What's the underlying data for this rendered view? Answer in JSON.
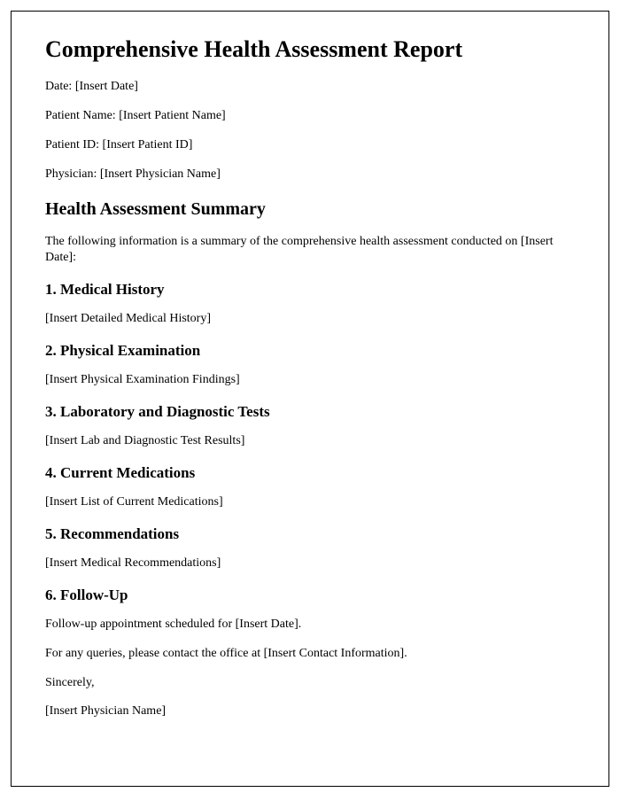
{
  "title": "Comprehensive Health Assessment Report",
  "meta": {
    "date_label": "Date: [Insert Date]",
    "patient_name_label": "Patient Name: [Insert Patient Name]",
    "patient_id_label": "Patient ID: [Insert Patient ID]",
    "physician_label": "Physician: [Insert Physician Name]"
  },
  "summary_heading": "Health Assessment Summary",
  "summary_intro": "The following information is a summary of the comprehensive health assessment conducted on [Insert Date]:",
  "sections": {
    "s1": {
      "heading": "1. Medical History",
      "body": "[Insert Detailed Medical History]"
    },
    "s2": {
      "heading": "2. Physical Examination",
      "body": "[Insert Physical Examination Findings]"
    },
    "s3": {
      "heading": "3. Laboratory and Diagnostic Tests",
      "body": "[Insert Lab and Diagnostic Test Results]"
    },
    "s4": {
      "heading": "4. Current Medications",
      "body": "[Insert List of Current Medications]"
    },
    "s5": {
      "heading": "5. Recommendations",
      "body": "[Insert Medical Recommendations]"
    },
    "s6": {
      "heading": "6. Follow-Up",
      "body1": "Follow-up appointment scheduled for [Insert Date].",
      "body2": "For any queries, please contact the office at [Insert Contact Information].",
      "closing": "Sincerely,",
      "signature": "[Insert Physician Name]"
    }
  }
}
